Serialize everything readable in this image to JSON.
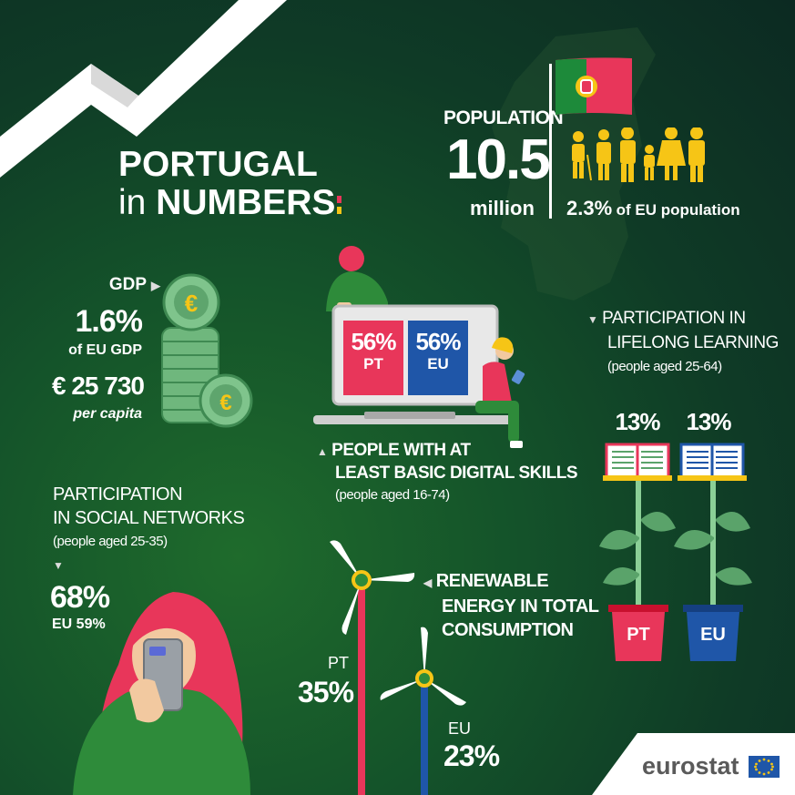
{
  "header": {
    "title_line1": "PORTUGAL",
    "title_in": "in",
    "title_numbers": "NUMBERS"
  },
  "population": {
    "label": "POPULATION",
    "value": "10.5",
    "unit": "million",
    "eu_share_value": "2.3%",
    "eu_share_label": "of EU population"
  },
  "gdp": {
    "label": "GDP",
    "share_value": "1.6%",
    "share_label": "of EU GDP",
    "per_capita_value": "€ 25 730",
    "per_capita_label": "per capita"
  },
  "digital_skills": {
    "pt_value": "56%",
    "pt_label": "PT",
    "eu_value": "56%",
    "eu_label": "EU",
    "title_line1": "PEOPLE WITH AT",
    "title_line2": "LEAST BASIC DIGITAL SKILLS",
    "subtitle": "(people aged 16-74)"
  },
  "lifelong_learning": {
    "title_line1": "PARTICIPATION IN",
    "title_line2": "LIFELONG LEARNING",
    "subtitle": "(people aged 25-64)",
    "pt_value": "13%",
    "pt_label": "PT",
    "eu_value": "13%",
    "eu_label": "EU"
  },
  "social_networks": {
    "title_line1": "PARTICIPATION",
    "title_line2": "IN SOCIAL NETWORKS",
    "subtitle": "(people aged 25-35)",
    "pt_value": "68%",
    "eu_text": "EU 59%"
  },
  "renewable": {
    "title_line1": "RENEWABLE",
    "title_line2": "ENERGY IN TOTAL",
    "title_line3": "CONSUMPTION",
    "pt_label": "PT",
    "pt_value": "35%",
    "eu_label": "EU",
    "eu_value": "23%"
  },
  "brand": {
    "name": "eurostat"
  },
  "colors": {
    "pt_red": "#e8365a",
    "eu_blue": "#1f56a8",
    "yellow": "#f6c516",
    "green_accent": "#2e8b3a"
  }
}
